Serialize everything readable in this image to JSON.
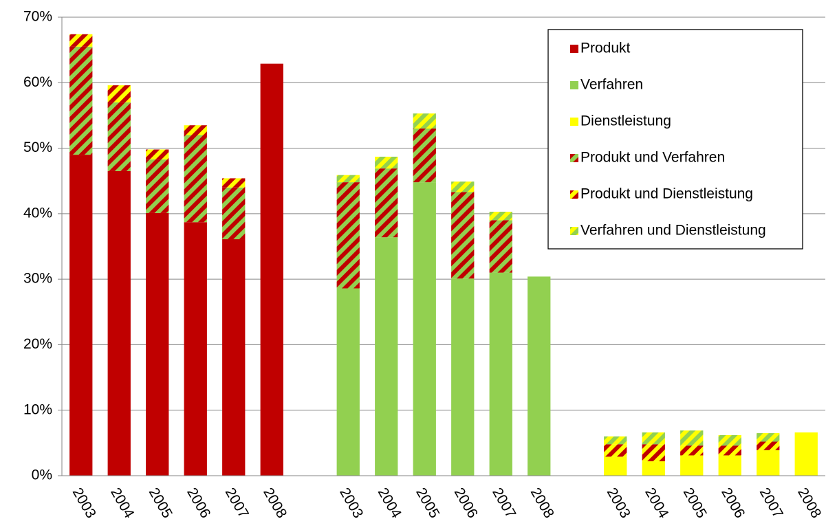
{
  "chart_data": {
    "type": "stacked_bar",
    "categories": [
      "2003",
      "2004",
      "2005",
      "2006",
      "2007",
      "2008",
      null,
      "2003",
      "2004",
      "2005",
      "2006",
      "2007",
      "2008",
      null,
      "2003",
      "2004",
      "2005",
      "2006",
      "2007",
      "2008"
    ],
    "series": [
      {
        "name": "Produkt",
        "color": "#c00000",
        "values": [
          49.0,
          46.5,
          40.1,
          38.7,
          36.1,
          62.9,
          null,
          null,
          null,
          null,
          null,
          null,
          null,
          null,
          null,
          null,
          null,
          null,
          null,
          null
        ]
      },
      {
        "name": "Verfahren",
        "color": "#92d050",
        "values": [
          null,
          null,
          null,
          null,
          null,
          null,
          null,
          28.6,
          36.4,
          44.8,
          30.1,
          31.0,
          30.4,
          null,
          null,
          null,
          null,
          null,
          null,
          null
        ]
      },
      {
        "name": "Dienstleistung",
        "color": "#ffff00",
        "values": [
          null,
          null,
          null,
          null,
          null,
          null,
          null,
          null,
          null,
          null,
          null,
          null,
          null,
          null,
          2.9,
          2.2,
          3.1,
          3.1,
          3.9,
          6.6
        ]
      },
      {
        "name": "Produkt und Verfahren",
        "color": "#c00000",
        "hatch": "#92d050",
        "values": [
          16.5,
          10.5,
          8.2,
          13.3,
          7.9,
          null,
          null,
          16.2,
          10.5,
          8.2,
          13.2,
          8.0,
          null,
          null,
          null,
          null,
          null,
          null,
          null,
          null
        ]
      },
      {
        "name": "Produkt und Dienstleistung",
        "color": "#c00000",
        "hatch": "#ffff00",
        "values": [
          1.9,
          2.6,
          1.5,
          1.5,
          1.4,
          null,
          null,
          null,
          null,
          null,
          null,
          null,
          null,
          null,
          1.9,
          2.6,
          1.5,
          1.5,
          1.3,
          null
        ]
      },
      {
        "name": "Verfahren und Dienstleistung",
        "color": "#92d050",
        "hatch": "#ffff00",
        "values": [
          null,
          null,
          null,
          null,
          null,
          null,
          null,
          1.1,
          1.8,
          2.3,
          1.6,
          1.3,
          null,
          null,
          1.2,
          1.8,
          2.3,
          1.6,
          1.3,
          null
        ]
      }
    ],
    "ylim": [
      0,
      70
    ],
    "yticks": [
      {
        "value": 0,
        "label": "0%"
      },
      {
        "value": 10,
        "label": "10%"
      },
      {
        "value": 20,
        "label": "20%"
      },
      {
        "value": 30,
        "label": "30%"
      },
      {
        "value": 40,
        "label": "40%"
      },
      {
        "value": 50,
        "label": "50%"
      },
      {
        "value": 60,
        "label": "60%"
      },
      {
        "value": 70,
        "label": "70%"
      }
    ],
    "grid": true,
    "legend": "upper right"
  }
}
